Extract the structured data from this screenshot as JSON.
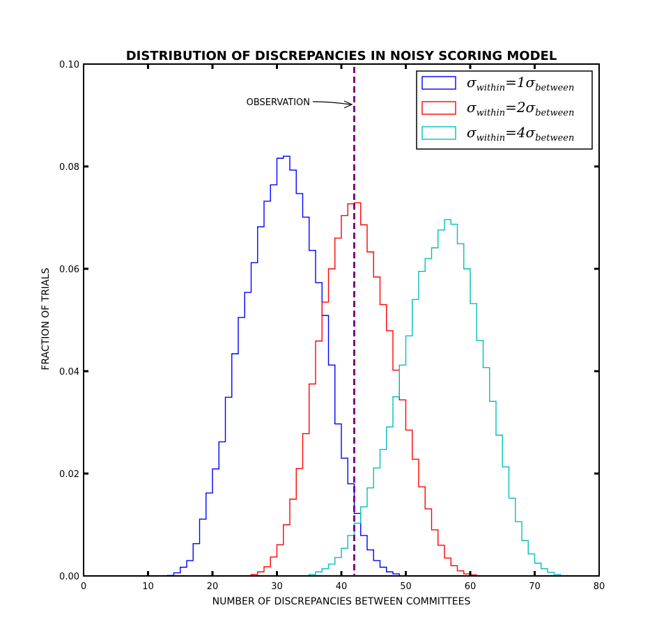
{
  "chart_data": {
    "type": "histogram-step",
    "title": "DISTRIBUTION OF DISCREPANCIES IN NOISY SCORING MODEL",
    "xlabel": "NUMBER OF DISCREPANCIES BETWEEN COMMITTEES",
    "ylabel": "FRACTION OF TRIALS",
    "xlim": [
      0,
      80
    ],
    "ylim": [
      0,
      0.1
    ],
    "xticks": [
      "0",
      "10",
      "20",
      "30",
      "40",
      "50",
      "60",
      "70",
      "80"
    ],
    "yticks": [
      "0.00",
      "0.02",
      "0.04",
      "0.06",
      "0.08",
      "0.10"
    ],
    "grid": false,
    "legend_position": "top-right",
    "observation": {
      "x": 42,
      "label": "OBSERVATION",
      "color": "#800080"
    },
    "series": [
      {
        "name": "σwithin=1σbetween",
        "legend_main": "σ",
        "legend_sub1": "within",
        "legend_mid": "=1σ",
        "legend_sub2": "between",
        "color": "#0000ff",
        "x_start": 13,
        "values": [
          0.0001,
          0.0006,
          0.0017,
          0.003,
          0.0063,
          0.0111,
          0.0162,
          0.0209,
          0.0262,
          0.0349,
          0.0434,
          0.0505,
          0.0554,
          0.0612,
          0.0682,
          0.0732,
          0.0764,
          0.0816,
          0.082,
          0.0793,
          0.0747,
          0.0701,
          0.0636,
          0.0573,
          0.0509,
          0.0412,
          0.0297,
          0.023,
          0.018,
          0.0122,
          0.0079,
          0.0051,
          0.003,
          0.0017,
          0.0008,
          0.0004
        ]
      },
      {
        "name": "σwithin=2σbetween",
        "legend_main": "σ",
        "legend_sub1": "within",
        "legend_mid": "=2σ",
        "legend_sub2": "between",
        "color": "#ff0000",
        "x_start": 26,
        "values": [
          0.0003,
          0.0008,
          0.0018,
          0.0037,
          0.0061,
          0.01,
          0.015,
          0.021,
          0.0278,
          0.0375,
          0.0459,
          0.0535,
          0.06,
          0.066,
          0.0704,
          0.0727,
          0.0729,
          0.0686,
          0.0633,
          0.0584,
          0.053,
          0.0479,
          0.0402,
          0.0344,
          0.0285,
          0.0228,
          0.0174,
          0.0131,
          0.009,
          0.006,
          0.0035,
          0.002,
          0.001,
          0.0004,
          0.0002
        ]
      },
      {
        "name": "σwithin=4σbetween",
        "legend_main": "σ",
        "legend_sub1": "within",
        "legend_mid": "=4σ",
        "legend_sub2": "between",
        "color": "#00bfbf",
        "x_start": 35,
        "values": [
          0.0003,
          0.0008,
          0.0014,
          0.0023,
          0.0036,
          0.0054,
          0.0079,
          0.0103,
          0.0135,
          0.0172,
          0.0211,
          0.0247,
          0.0291,
          0.035,
          0.0412,
          0.0469,
          0.054,
          0.0595,
          0.062,
          0.0641,
          0.0676,
          0.0696,
          0.0687,
          0.0649,
          0.06,
          0.0532,
          0.046,
          0.0407,
          0.0341,
          0.0275,
          0.0213,
          0.0152,
          0.0106,
          0.0069,
          0.0043,
          0.0025,
          0.0014,
          0.0007,
          0.0003
        ]
      }
    ]
  }
}
